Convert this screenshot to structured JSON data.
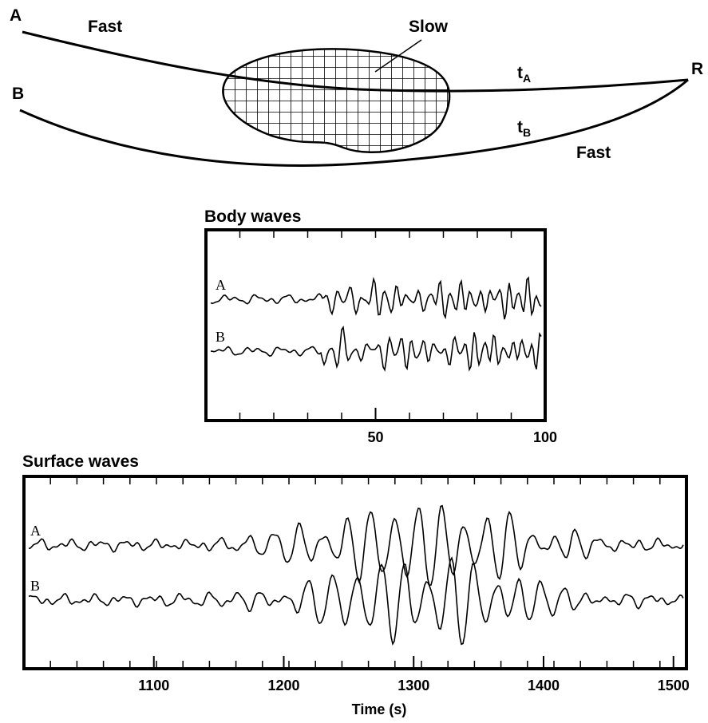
{
  "diagram": {
    "a": "A",
    "b": "B",
    "r": "R",
    "fast_top": "Fast",
    "slow": "Slow",
    "fast_bottom": "Fast",
    "t_a": "t",
    "t_a_sub": "A",
    "t_b": "t",
    "t_b_sub": "B"
  },
  "body_waves": {
    "title": "Body waves",
    "traces": [
      "A",
      "B"
    ],
    "xlim": [
      0,
      100
    ],
    "xticks": [
      50,
      100
    ]
  },
  "surface_waves": {
    "title": "Surface waves",
    "traces": [
      "A",
      "B"
    ],
    "xlim": [
      1000,
      1510
    ],
    "xticks": [
      1100,
      1200,
      1300,
      1400,
      1500
    ],
    "xlabel": "Time (s)"
  }
}
